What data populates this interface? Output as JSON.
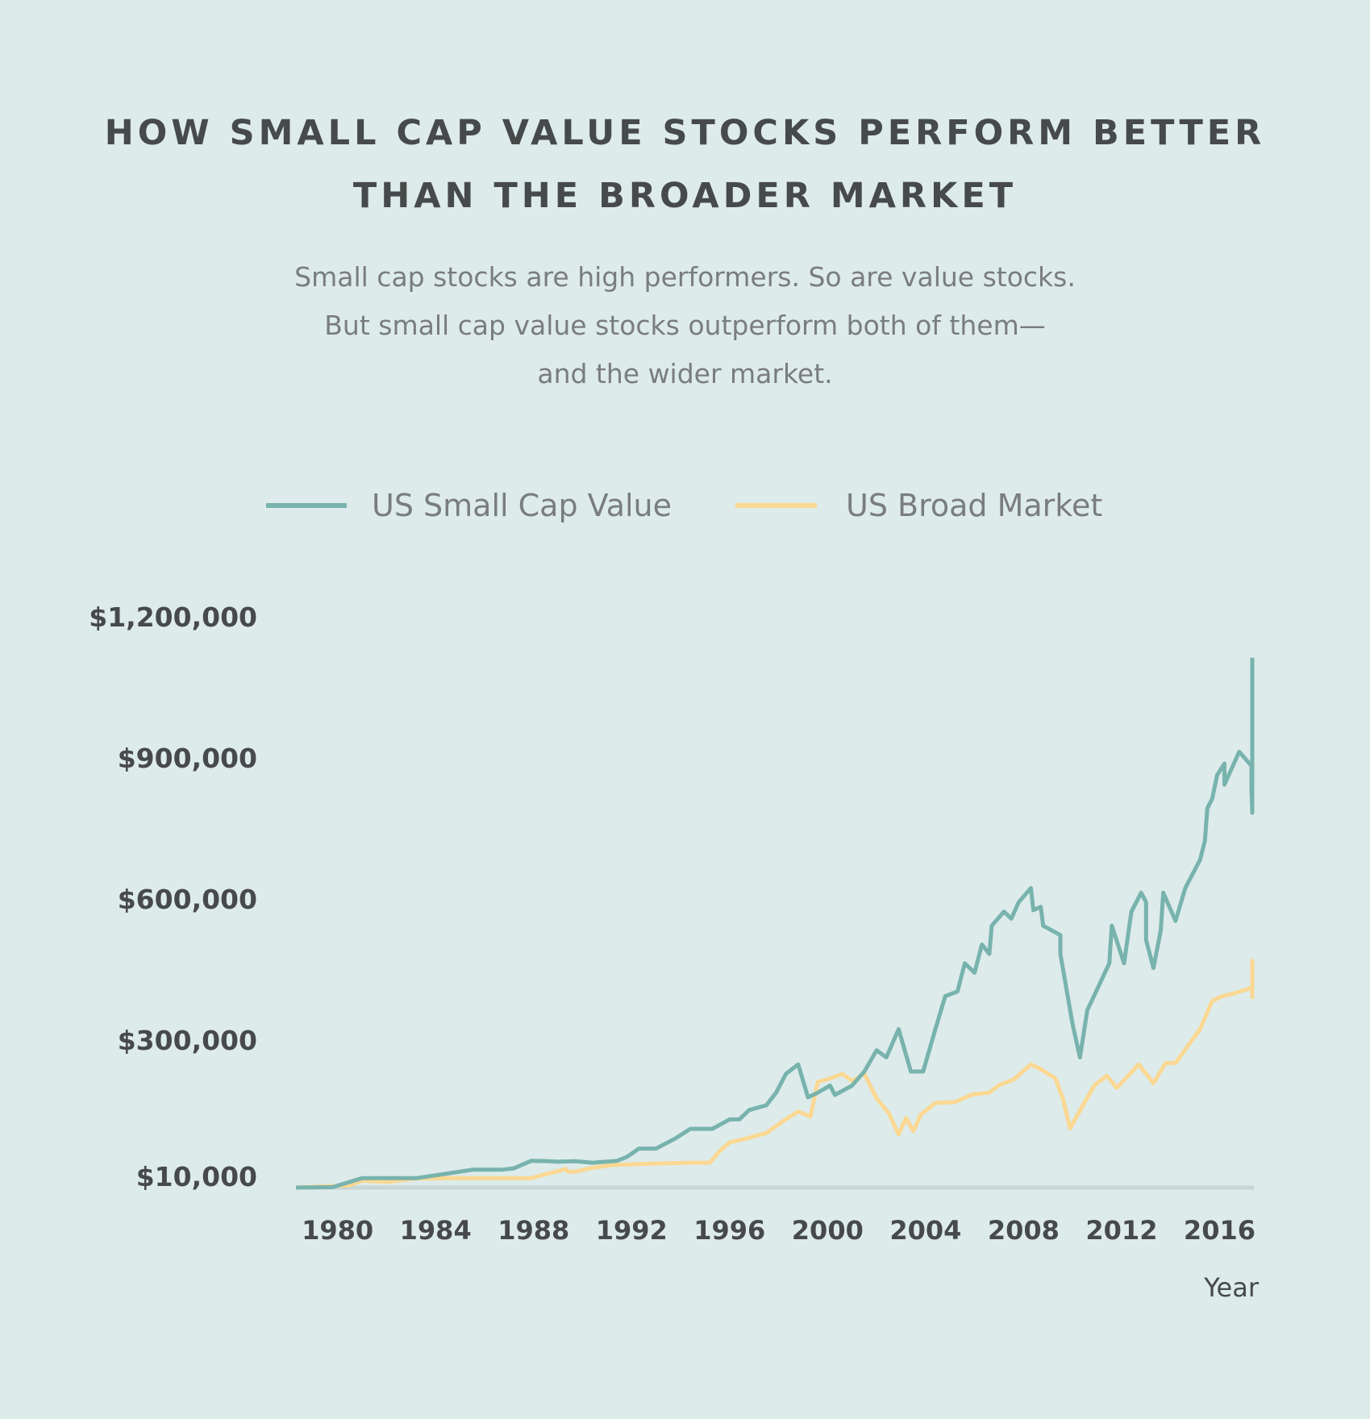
{
  "colors": {
    "background": "#ddebea",
    "small_cap_value": "#78b3ae",
    "broad_market": "#fbd893",
    "baseline": "#c6d6d6",
    "title": "#474a4a",
    "subtitle": "#7a7d7d"
  },
  "header": {
    "title_line_1": "HOW SMALL CAP VALUE STOCKS PERFORM BETTER",
    "title_line_2": "THAN THE BROADER MARKET",
    "subtitle_line_1": "Small cap stocks are high performers. So are value stocks.",
    "subtitle_line_2": "But small cap value stocks outperform both of them—",
    "subtitle_line_3": "and the wider market."
  },
  "chart_data": {
    "type": "line",
    "title": "HOW SMALL CAP VALUE STOCKS PERFORM BETTER THAN THE BROADER MARKET",
    "xlabel": "Year",
    "ylabel": "",
    "xlim": [
      1978.3,
      2017.4
    ],
    "y_ticks": [
      {
        "value": 10000,
        "label": "$10,000"
      },
      {
        "value": 300000,
        "label": "$300,000"
      },
      {
        "value": 600000,
        "label": "$600,000"
      },
      {
        "value": 900000,
        "label": "$900,000"
      },
      {
        "value": 1200000,
        "label": "$1,200,000"
      }
    ],
    "x_ticks": [
      {
        "value": 1980,
        "label": "1980"
      },
      {
        "value": 1984,
        "label": "1984"
      },
      {
        "value": 1988,
        "label": "1988"
      },
      {
        "value": 1992,
        "label": "1992"
      },
      {
        "value": 1996,
        "label": "1996"
      },
      {
        "value": 2000,
        "label": "2000"
      },
      {
        "value": 2004,
        "label": "2004"
      },
      {
        "value": 2008,
        "label": "2008"
      },
      {
        "value": 2012,
        "label": "2012"
      },
      {
        "value": 2016,
        "label": "2016"
      }
    ],
    "legend": [
      "US Small Cap Value",
      "US Broad Market"
    ],
    "series": [
      {
        "name": "US Small Cap Value",
        "points": [
          [
            1978.3,
            10000
          ],
          [
            1979.8,
            11000
          ],
          [
            1981.0,
            30000
          ],
          [
            1982.0,
            30000
          ],
          [
            1983.2,
            30000
          ],
          [
            1984.5,
            40000
          ],
          [
            1985.5,
            48000
          ],
          [
            1986.7,
            48000
          ],
          [
            1987.2,
            51000
          ],
          [
            1987.9,
            67000
          ],
          [
            1988.6,
            66000
          ],
          [
            1989.0,
            65000
          ],
          [
            1989.7,
            66000
          ],
          [
            1990.4,
            63000
          ],
          [
            1991.4,
            67000
          ],
          [
            1991.8,
            75000
          ],
          [
            1992.3,
            93000
          ],
          [
            1993.0,
            93000
          ],
          [
            1993.8,
            115000
          ],
          [
            1994.4,
            135000
          ],
          [
            1995.3,
            135000
          ],
          [
            1996.0,
            155000
          ],
          [
            1996.4,
            155000
          ],
          [
            1996.8,
            175000
          ],
          [
            1997.5,
            185000
          ],
          [
            1997.9,
            212000
          ],
          [
            1998.3,
            252000
          ],
          [
            1998.8,
            272000
          ],
          [
            1999.2,
            202000
          ],
          [
            1999.6,
            212000
          ],
          [
            2000.1,
            227000
          ],
          [
            2000.3,
            207000
          ],
          [
            2001.0,
            227000
          ],
          [
            2001.5,
            257000
          ],
          [
            2002.0,
            302000
          ],
          [
            2002.4,
            287000
          ],
          [
            2002.9,
            347000
          ],
          [
            2003.4,
            257000
          ],
          [
            2003.9,
            257000
          ],
          [
            2004.4,
            347000
          ],
          [
            2004.8,
            417000
          ],
          [
            2005.3,
            427000
          ],
          [
            2005.6,
            487000
          ],
          [
            2006.0,
            467000
          ],
          [
            2006.3,
            527000
          ],
          [
            2006.6,
            507000
          ],
          [
            2006.7,
            567000
          ],
          [
            2007.2,
            597000
          ],
          [
            2007.5,
            582000
          ],
          [
            2007.8,
            617000
          ],
          [
            2008.3,
            647000
          ],
          [
            2008.4,
            600000
          ],
          [
            2008.7,
            607000
          ],
          [
            2008.8,
            567000
          ],
          [
            2009.5,
            547000
          ],
          [
            2009.5,
            507000
          ],
          [
            2010.0,
            357000
          ],
          [
            2010.3,
            287000
          ],
          [
            2010.6,
            387000
          ],
          [
            2011.5,
            487000
          ],
          [
            2011.6,
            567000
          ],
          [
            2012.1,
            487000
          ],
          [
            2012.4,
            597000
          ],
          [
            2012.8,
            637000
          ],
          [
            2013.0,
            617000
          ],
          [
            2013.0,
            537000
          ],
          [
            2013.3,
            477000
          ],
          [
            2013.6,
            557000
          ],
          [
            2013.7,
            637000
          ],
          [
            2014.2,
            577000
          ],
          [
            2014.6,
            647000
          ],
          [
            2015.2,
            707000
          ],
          [
            2015.4,
            747000
          ],
          [
            2015.5,
            817000
          ],
          [
            2015.7,
            837000
          ],
          [
            2015.9,
            887000
          ],
          [
            2016.2,
            912000
          ],
          [
            2016.2,
            867000
          ],
          [
            2016.8,
            937000
          ],
          [
            2017.3,
            907000
          ],
          [
            2017.3,
            857000
          ],
          [
            2017.6,
            807000
          ],
          [
            2017.9,
            897000
          ],
          [
            2018.2,
            947000
          ],
          [
            2018.2,
            997000
          ],
          [
            2018.4,
            1137000
          ],
          [
            2018.6,
            1137000
          ]
        ]
      },
      {
        "name": "US Broad Market",
        "points": [
          [
            1978.3,
            10000
          ],
          [
            1980.5,
            15000
          ],
          [
            1981.0,
            25000
          ],
          [
            1982.0,
            22000
          ],
          [
            1983.2,
            29000
          ],
          [
            1984.5,
            30000
          ],
          [
            1985.5,
            30000
          ],
          [
            1986.7,
            30000
          ],
          [
            1987.9,
            30000
          ],
          [
            1988.6,
            40000
          ],
          [
            1989.0,
            45000
          ],
          [
            1989.3,
            50000
          ],
          [
            1989.4,
            44000
          ],
          [
            1989.7,
            44000
          ],
          [
            1990.4,
            52000
          ],
          [
            1991.2,
            58000
          ],
          [
            1991.8,
            59000
          ],
          [
            1992.3,
            60000
          ],
          [
            1993.5,
            62000
          ],
          [
            1994.4,
            63000
          ],
          [
            1995.2,
            63000
          ],
          [
            1995.6,
            88000
          ],
          [
            1996.0,
            106000
          ],
          [
            1996.8,
            116000
          ],
          [
            1997.5,
            126000
          ],
          [
            1998.2,
            152000
          ],
          [
            1998.8,
            172000
          ],
          [
            1999.3,
            161000
          ],
          [
            1999.6,
            235000
          ],
          [
            2000.1,
            242000
          ],
          [
            2000.6,
            252000
          ],
          [
            2001.0,
            237000
          ],
          [
            2001.5,
            252000
          ],
          [
            2002.0,
            200000
          ],
          [
            2002.5,
            168000
          ],
          [
            2002.9,
            123000
          ],
          [
            2003.2,
            158000
          ],
          [
            2003.5,
            130000
          ],
          [
            2003.8,
            165000
          ],
          [
            2004.4,
            190000
          ],
          [
            2005.2,
            192000
          ],
          [
            2005.9,
            208000
          ],
          [
            2006.6,
            212000
          ],
          [
            2007.0,
            228000
          ],
          [
            2007.6,
            240000
          ],
          [
            2008.3,
            272000
          ],
          [
            2008.7,
            262000
          ],
          [
            2009.3,
            242000
          ],
          [
            2009.6,
            200000
          ],
          [
            2009.9,
            136000
          ],
          [
            2010.4,
            183000
          ],
          [
            2010.9,
            228000
          ],
          [
            2011.4,
            248000
          ],
          [
            2011.8,
            222000
          ],
          [
            2012.7,
            272000
          ],
          [
            2013.3,
            232000
          ],
          [
            2013.8,
            275000
          ],
          [
            2014.2,
            275000
          ],
          [
            2015.2,
            347000
          ],
          [
            2015.7,
            407000
          ],
          [
            2016.1,
            417000
          ],
          [
            2016.6,
            423000
          ],
          [
            2017.3,
            435000
          ],
          [
            2017.7,
            427000
          ],
          [
            2018.1,
            415000
          ],
          [
            2018.4,
            453000
          ],
          [
            2019.0,
            496000
          ]
        ]
      }
    ]
  }
}
